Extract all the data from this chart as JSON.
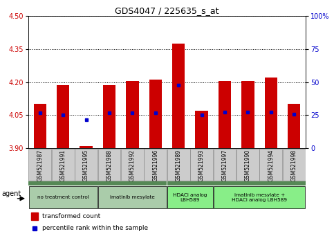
{
  "title": "GDS4047 / 225635_s_at",
  "samples": [
    "GSM521987",
    "GSM521991",
    "GSM521995",
    "GSM521988",
    "GSM521992",
    "GSM521996",
    "GSM521989",
    "GSM521993",
    "GSM521997",
    "GSM521990",
    "GSM521994",
    "GSM521998"
  ],
  "bar_tops": [
    4.1,
    4.185,
    3.91,
    4.185,
    4.205,
    4.21,
    4.375,
    4.07,
    4.205,
    4.205,
    4.22,
    4.1
  ],
  "bar_bottom": 3.9,
  "percentile_values": [
    4.062,
    4.05,
    4.03,
    4.062,
    4.062,
    4.062,
    4.185,
    4.05,
    4.065,
    4.065,
    4.065,
    4.055
  ],
  "ylim_left": [
    3.9,
    4.5
  ],
  "ylim_right": [
    0,
    100
  ],
  "yticks_left": [
    3.9,
    4.05,
    4.2,
    4.35,
    4.5
  ],
  "yticks_right": [
    0,
    25,
    50,
    75,
    100
  ],
  "ytick_labels_right": [
    "0",
    "25",
    "50",
    "75",
    "100%"
  ],
  "bar_color": "#cc0000",
  "percentile_color": "#0000cc",
  "groups": [
    {
      "label": "no treatment control",
      "start": 0,
      "end": 3,
      "color": "#aaccaa"
    },
    {
      "label": "imatinib mesylate",
      "start": 3,
      "end": 6,
      "color": "#aaccaa"
    },
    {
      "label": "HDACi analog\nLBH589",
      "start": 6,
      "end": 8,
      "color": "#88ee88"
    },
    {
      "label": "imatinib mesylate +\nHDACi analog LBH589",
      "start": 8,
      "end": 12,
      "color": "#88ee88"
    }
  ],
  "legend_red_label": "transformed count",
  "legend_blue_label": "percentile rank within the sample",
  "agent_label": "agent",
  "bar_width": 0.55,
  "sample_box_color": "#cccccc",
  "outer_group_color": "#558855"
}
